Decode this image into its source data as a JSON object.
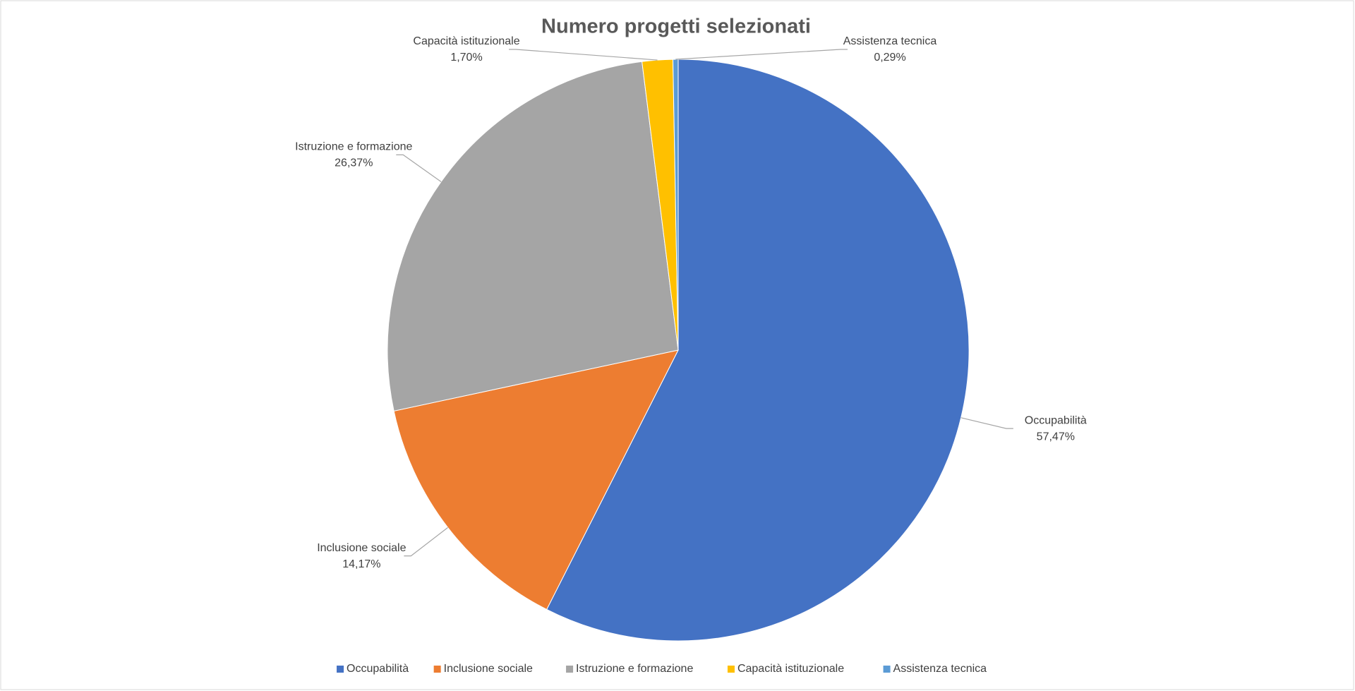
{
  "chart_data": {
    "type": "pie",
    "title": "Numero progetti selezionati",
    "categories": [
      "Occupabilità",
      "Inclusione sociale",
      "Istruzione e formazione",
      "Capacità istituzionale",
      "Assistenza tecnica"
    ],
    "values": [
      57.47,
      14.17,
      26.37,
      1.7,
      0.29
    ],
    "value_labels": [
      "57,47%",
      "14,17%",
      "26,37%",
      "1,70%",
      "0,29%"
    ],
    "colors": [
      "#4472c4",
      "#ed7d31",
      "#a5a5a5",
      "#ffc000",
      "#5b9bd5"
    ],
    "legend": "bottom"
  }
}
